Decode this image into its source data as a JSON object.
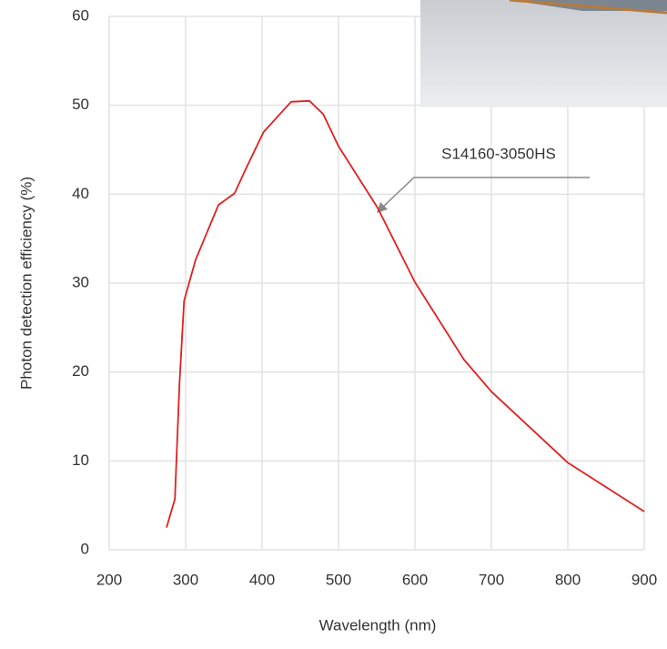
{
  "chart_data": {
    "type": "line",
    "x_label": "Wavelength (nm)",
    "y_label": "Photon detection efficiency (%)",
    "annotation": "S14160-3050HS",
    "x": [
      275,
      286,
      292,
      298,
      313,
      343,
      364,
      379,
      402,
      438,
      462,
      480,
      500,
      551,
      600,
      664,
      700,
      800,
      900
    ],
    "series": [
      {
        "name": "S14160-3050HS",
        "color": "#e02020",
        "values": [
          2.5,
          5.7,
          18.8,
          28,
          32.6,
          38.8,
          40.1,
          42.9,
          47,
          50.4,
          50.5,
          49,
          45.4,
          38.5,
          30.1,
          21.4,
          17.8,
          9.8,
          4.3
        ]
      }
    ],
    "xlim": [
      200,
      900
    ],
    "xticks": [
      200,
      300,
      400,
      500,
      600,
      700,
      800,
      900
    ],
    "ylim": [
      0,
      60
    ],
    "yticks": [
      0,
      10,
      20,
      30,
      40,
      50,
      60
    ],
    "grid": true
  }
}
